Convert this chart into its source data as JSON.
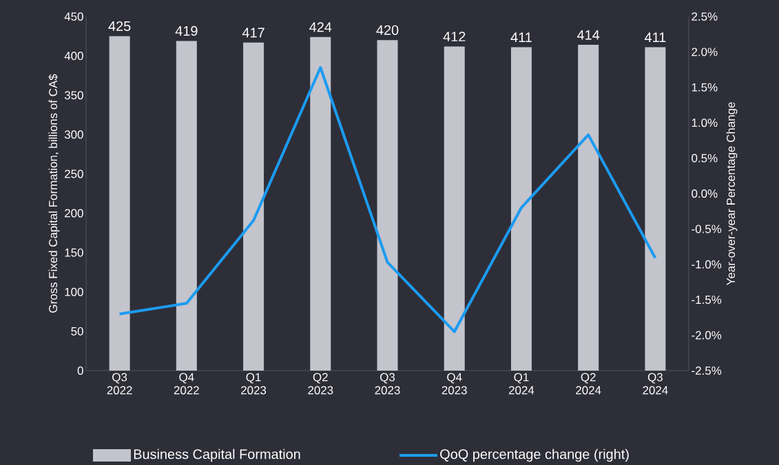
{
  "chart_data": {
    "type": "bar",
    "categories": [
      "Q3 2022",
      "Q4 2022",
      "Q1 2023",
      "Q2 2023",
      "Q3 2023",
      "Q4 2023",
      "Q1 2024",
      "Q2 2024",
      "Q3 2024"
    ],
    "ylabel": "Gross Fixed Capital Formation, billions of CA$",
    "y2label": "Year-over-year Percentage Change",
    "ylim": [
      0,
      450
    ],
    "yticks": [
      0,
      50,
      100,
      150,
      200,
      250,
      300,
      350,
      400,
      450
    ],
    "y2lim": [
      -2.5,
      2.5
    ],
    "y2ticks": [
      {
        "value": -2.5,
        "label": "-2.5%"
      },
      {
        "value": -2.0,
        "label": "-2.0%"
      },
      {
        "value": -1.5,
        "label": "-1.5%"
      },
      {
        "value": -1.0,
        "label": "-1.0%"
      },
      {
        "value": -0.5,
        "label": "-0.5%"
      },
      {
        "value": 0.0,
        "label": "0.0%"
      },
      {
        "value": 0.5,
        "label": "0.5%"
      },
      {
        "value": 1.0,
        "label": "1.0%"
      },
      {
        "value": 1.5,
        "label": "1.5%"
      },
      {
        "value": 2.0,
        "label": "2.0%"
      },
      {
        "value": 2.5,
        "label": "2.5%"
      }
    ],
    "series": [
      {
        "name": "Business Capital Formation",
        "color": "#c4c4cd",
        "values": [
          425,
          419,
          417,
          424,
          420,
          412,
          411,
          414,
          411
        ],
        "value_labels": [
          "425",
          "419",
          "417",
          "424",
          "420",
          "412",
          "411",
          "414",
          "411"
        ]
      },
      {
        "name": "QoQ percentage change (right)",
        "type": "line",
        "axis": "y2",
        "color": "#1c9bf0",
        "values": [
          -1.7,
          -1.55,
          -0.38,
          1.78,
          -0.97,
          -1.95,
          -0.2,
          0.83,
          -0.91
        ]
      }
    ],
    "grid": false,
    "legend": "bottom"
  }
}
